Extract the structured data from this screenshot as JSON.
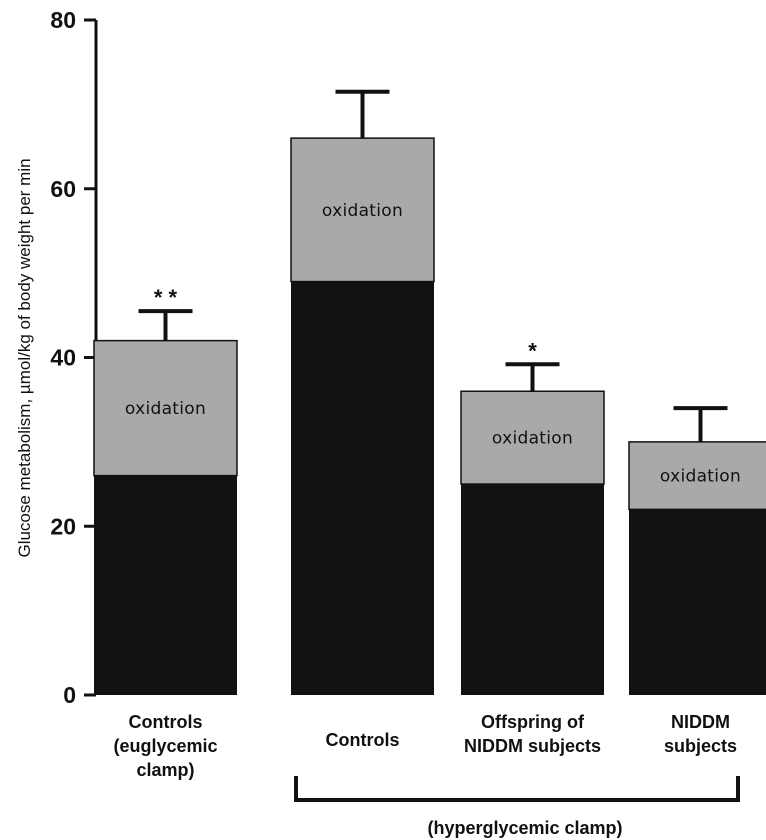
{
  "chart_data": {
    "type": "bar",
    "stacked": true,
    "title": "",
    "ylabel": "Glucose metabolism, µmol/kg of body weight per min",
    "ylim": [
      0,
      80
    ],
    "yticks": [
      0,
      20,
      40,
      60,
      80
    ],
    "grid": false,
    "categories": [
      {
        "lines": [
          "Controls",
          "(euglycemic",
          "clamp)"
        ]
      },
      {
        "lines": [
          "Controls"
        ]
      },
      {
        "lines": [
          "Offspring of",
          "NIDDM subjects"
        ]
      },
      {
        "lines": [
          "NIDDM",
          "subjects"
        ]
      }
    ],
    "series": [
      {
        "values": [
          26,
          49,
          25,
          22
        ],
        "color": "#111111"
      },
      {
        "name": "oxidation",
        "values": [
          16,
          17,
          11,
          8
        ],
        "color": "#a9a9a9"
      }
    ],
    "segment_labels": [
      "oxidation",
      "oxidation",
      "oxidation",
      "oxidation"
    ],
    "error_bars": [
      3.5,
      5.5,
      3.2,
      4.0
    ],
    "significance": [
      "* *",
      "",
      "*",
      ""
    ],
    "group_bracket": {
      "label": "(hyperglycemic clamp)",
      "from": 1,
      "to": 3
    }
  }
}
